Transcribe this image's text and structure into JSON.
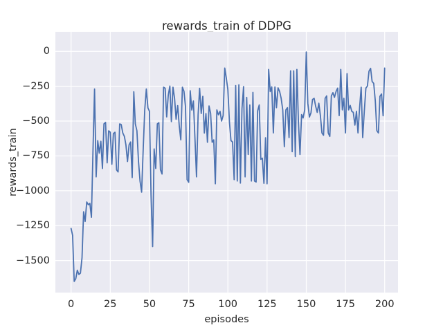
{
  "figure": {
    "title": "rewards_train of DDPG",
    "xlabel": "episodes",
    "ylabel": "rewards_train"
  },
  "colors": {
    "figure_background": "#FFFFFF",
    "axes_background": "#EAEAF2",
    "grid": "#FFFFFF",
    "line": "#4C72B0",
    "text": "#262626"
  },
  "chart_data": {
    "type": "line",
    "title": "rewards_train of DDPG",
    "xlabel": "episodes",
    "ylabel": "rewards_train",
    "grid": true,
    "legend": false,
    "xlim": [
      -10,
      208.5
    ],
    "ylim": [
      -1730,
      140
    ],
    "xticks": [
      0,
      25,
      50,
      75,
      100,
      125,
      150,
      175,
      200
    ],
    "xtick_labels": [
      "0",
      "25",
      "50",
      "75",
      "100",
      "125",
      "150",
      "175",
      "200"
    ],
    "yticks": [
      0,
      -250,
      -500,
      -750,
      -1000,
      -1250,
      -1500
    ],
    "ytick_labels": [
      "0",
      "−250",
      "−500",
      "−750",
      "−1000",
      "−1250",
      "−1500"
    ],
    "x": {
      "start": 0,
      "step": 1,
      "count": 201,
      "label": "episode index 0..200"
    },
    "series": [
      {
        "name": "rewards_train",
        "color": "#4C72B0",
        "values": [
          -1270,
          -1320,
          -1650,
          -1630,
          -1570,
          -1600,
          -1590,
          -1480,
          -1150,
          -1220,
          -1080,
          -1100,
          -1090,
          -1190,
          -700,
          -270,
          -900,
          -640,
          -730,
          -645,
          -840,
          -520,
          -510,
          -800,
          -570,
          -580,
          -810,
          -590,
          -580,
          -850,
          -865,
          -520,
          -525,
          -585,
          -610,
          -670,
          -790,
          -670,
          -650,
          -905,
          -290,
          -520,
          -570,
          -790,
          -930,
          -1010,
          -700,
          -420,
          -270,
          -405,
          -430,
          -1030,
          -1400,
          -700,
          -840,
          -520,
          -512,
          -849,
          -880,
          -257,
          -265,
          -470,
          -315,
          -249,
          -504,
          -257,
          -337,
          -487,
          -389,
          -536,
          -635,
          -257,
          -287,
          -397,
          -920,
          -939,
          -282,
          -421,
          -356,
          -620,
          -900,
          -455,
          -265,
          -446,
          -323,
          -586,
          -446,
          -652,
          -391,
          -446,
          -652,
          -635,
          -950,
          -420,
          -455,
          -430,
          -500,
          -460,
          -120,
          -190,
          -275,
          -510,
          -640,
          -650,
          -920,
          -245,
          -930,
          -240,
          -945,
          -410,
          -253,
          -900,
          -330,
          -740,
          -385,
          -930,
          -294,
          -930,
          -937,
          -427,
          -385,
          -774,
          -766,
          -947,
          -620,
          -950,
          -130,
          -288,
          -255,
          -585,
          -255,
          -404,
          -262,
          -288,
          -337,
          -420,
          -684,
          -420,
          -404,
          -619,
          -140,
          -720,
          -140,
          -755,
          -130,
          -500,
          -740,
          -453,
          -478,
          -420,
          -5,
          -372,
          -471,
          -440,
          -345,
          -337,
          -395,
          -438,
          -372,
          -462,
          -585,
          -602,
          -337,
          -320,
          -585,
          -610,
          -320,
          -296,
          -330,
          -288,
          -264,
          -461,
          -130,
          -420,
          -337,
          -585,
          -160,
          -420,
          -388,
          -430,
          -438,
          -529,
          -430,
          -585,
          -404,
          -257,
          -619,
          -430,
          -264,
          -249,
          -142,
          -122,
          -216,
          -230,
          -356,
          -569,
          -585,
          -323,
          -306,
          -462,
          -120
        ]
      }
    ]
  }
}
